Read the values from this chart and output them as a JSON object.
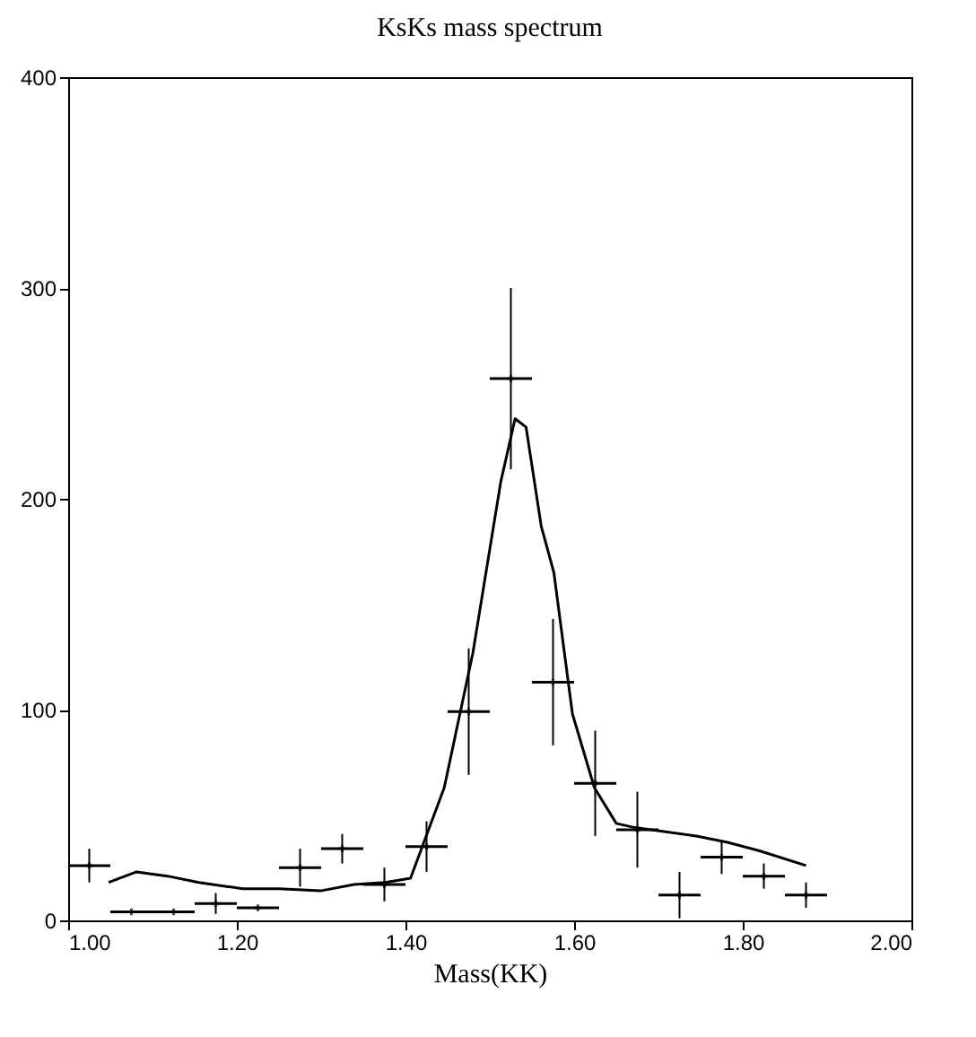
{
  "chart_data": {
    "type": "scatter",
    "title": "KsKs mass spectrum",
    "xlabel": "Mass(KK)",
    "xlim": [
      1,
      2
    ],
    "xticks": [
      {
        "value": 1,
        "label": "1.00"
      },
      {
        "value": 1.2,
        "label": "1.20"
      },
      {
        "value": 1.4,
        "label": "1.40"
      },
      {
        "value": 1.6,
        "label": "1.60"
      },
      {
        "value": 1.8,
        "label": "1.80"
      },
      {
        "value": 2,
        "label": "2.00"
      }
    ],
    "ylim": [
      0,
      400
    ],
    "yticks": [
      0,
      100,
      200,
      300,
      400
    ],
    "grid": false,
    "series": [
      {
        "color": "#000000",
        "marker": "cross",
        "x": [
          1.025,
          1.075,
          1.125,
          1.175,
          1.225,
          1.275,
          1.325,
          1.375,
          1.425,
          1.475,
          1.525,
          1.575,
          1.625,
          1.675,
          1.725,
          1.775,
          1.825,
          1.875
        ],
        "values": [
          26,
          4,
          4,
          8,
          6,
          25,
          34,
          17,
          35,
          99,
          257,
          113,
          65,
          43,
          12,
          30,
          21,
          12
        ],
        "errors": [
          8,
          null,
          null,
          5,
          null,
          9,
          7,
          8,
          12,
          30,
          43,
          30,
          25,
          18,
          11,
          8,
          6,
          6
        ],
        "xerrors": [
          0.025,
          0.025,
          0.025,
          0.025,
          0.025,
          0.025,
          0.025,
          0.025,
          0.025,
          0.025,
          0.025,
          0.025,
          0.025,
          0.025,
          0.025,
          0.025,
          0.025,
          0.025
        ]
      },
      {
        "type": "line",
        "color": "#000000",
        "line_style": "solid",
        "x": [
          1.048,
          1.081,
          1.118,
          1.155,
          1.207,
          1.251,
          1.299,
          1.339,
          1.376,
          1.406,
          1.446,
          1.48,
          1.513,
          1.53,
          1.543,
          1.561,
          1.576,
          1.598,
          1.624,
          1.65,
          1.672,
          1.745,
          1.782,
          1.82,
          1.875
        ],
        "values": [
          18,
          23,
          21,
          18,
          15,
          15,
          14,
          17,
          18,
          20,
          63,
          127,
          208,
          238,
          234,
          187,
          165,
          98,
          63,
          46,
          44,
          40,
          37,
          33,
          26
        ]
      }
    ]
  }
}
